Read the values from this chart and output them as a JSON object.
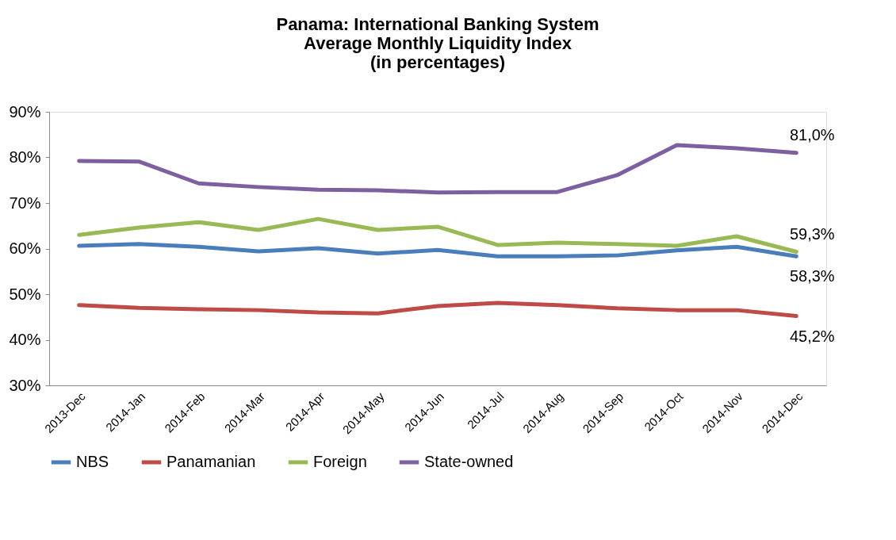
{
  "chart_data": {
    "type": "line",
    "title": "Panama: International Banking System\nAverage Monthly Liquidity Index\n(in percentages)",
    "categories": [
      "2013-Dec",
      "2014-Jan",
      "2014-Feb",
      "2014-Mar",
      "2014-Apr",
      "2014-May",
      "2014-Jun",
      "2014-Jul",
      "2014-Aug",
      "2014-Sep",
      "2014-Oct",
      "2014-Nov",
      "2014-Dec"
    ],
    "series": [
      {
        "name": "NBS",
        "color": "#4a7ebb",
        "values": [
          60.6,
          61.0,
          60.4,
          59.4,
          60.1,
          58.9,
          59.7,
          58.3,
          58.3,
          58.5,
          59.6,
          60.4,
          58.3
        ],
        "value_labels": [
          null,
          null,
          null,
          null,
          null,
          null,
          null,
          null,
          null,
          null,
          null,
          null,
          "58,3%"
        ]
      },
      {
        "name": "Panamanian",
        "color": "#be4b48",
        "values": [
          47.6,
          47.0,
          46.7,
          46.5,
          46.0,
          45.8,
          47.4,
          48.1,
          47.6,
          46.9,
          46.5,
          46.5,
          45.2
        ],
        "value_labels": [
          null,
          null,
          null,
          null,
          null,
          null,
          null,
          null,
          null,
          null,
          null,
          null,
          "45,2%"
        ]
      },
      {
        "name": "Foreign",
        "color": "#98b954",
        "values": [
          63.0,
          64.6,
          65.8,
          64.1,
          66.5,
          64.1,
          64.8,
          60.8,
          61.3,
          61.0,
          60.6,
          62.7,
          59.3
        ],
        "value_labels": [
          null,
          null,
          null,
          null,
          null,
          null,
          null,
          null,
          null,
          null,
          null,
          null,
          "59,3%"
        ]
      },
      {
        "name": "State-owned",
        "color": "#7d60a0",
        "values": [
          79.2,
          79.1,
          74.3,
          73.5,
          72.9,
          72.8,
          72.3,
          72.4,
          72.4,
          76.1,
          82.7,
          82.0,
          81.0
        ],
        "value_labels": [
          null,
          null,
          null,
          null,
          null,
          null,
          null,
          null,
          null,
          null,
          null,
          null,
          "81,0%"
        ]
      }
    ],
    "ylim": [
      30,
      90
    ],
    "yticks": [
      {
        "value": 30,
        "label": "30%"
      },
      {
        "value": 40,
        "label": "40%"
      },
      {
        "value": 50,
        "label": "50%"
      },
      {
        "value": 60,
        "label": "60%"
      },
      {
        "value": 70,
        "label": "70%"
      },
      {
        "value": 80,
        "label": "80%"
      },
      {
        "value": 90,
        "label": "90%"
      }
    ],
    "grid": false,
    "legend": "bottom",
    "marker": "none",
    "line_style": "solid"
  }
}
